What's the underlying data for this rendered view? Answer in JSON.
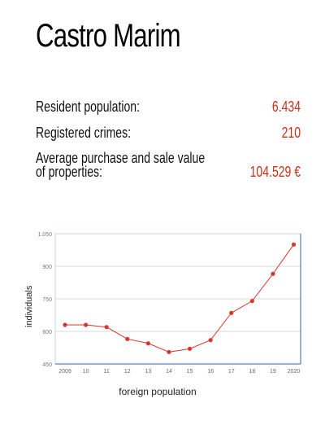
{
  "title": "Castro Marim",
  "stats": {
    "resident_label": "Resident population:",
    "resident_value": "6.434",
    "crimes_label": "Registered crimes:",
    "crimes_value": "210",
    "property_label_1": "Average purchase and sale value",
    "property_label_2": "of properties:",
    "property_value": "104.529 €"
  },
  "colors": {
    "accent": "#cc2e16",
    "series": "#d9362b",
    "axis": "#3d5ea8"
  },
  "chart_data": {
    "type": "line",
    "x": [
      "2009",
      "10",
      "11",
      "12",
      "13",
      "14",
      "15",
      "16",
      "17",
      "18",
      "19",
      "2020"
    ],
    "series": [
      {
        "values": [
          630,
          630,
          620,
          565,
          545,
          505,
          520,
          560,
          685,
          740,
          865,
          1000
        ]
      }
    ],
    "yticks": [
      "1.050",
      "900",
      "750",
      "600",
      "450"
    ],
    "ylim": [
      450,
      1050
    ],
    "xlabel": "foreign population",
    "ylabel": "individuals",
    "grid": true
  }
}
